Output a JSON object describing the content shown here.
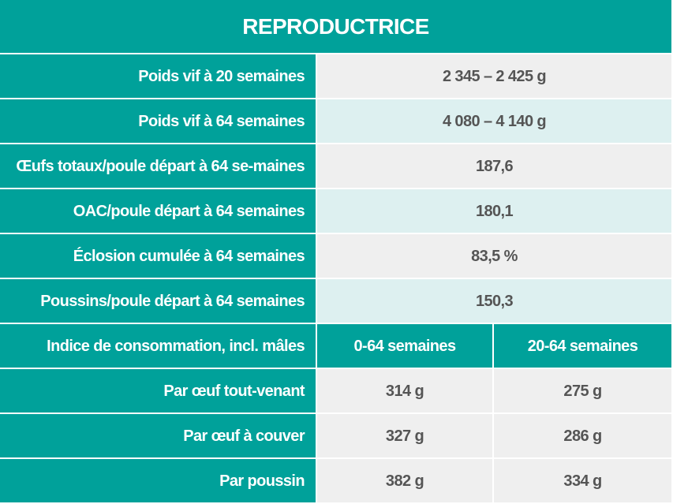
{
  "table": {
    "title": "REPRODUCTRICE",
    "rows": [
      [
        "Poids vif à 20 semaines",
        "2 345 – 2 425 g"
      ],
      [
        "Poids vif à 64 semaines",
        "4 080 – 4 140 g"
      ],
      [
        "Œufs totaux/poule départ à 64 se-maines",
        "187,6"
      ],
      [
        "OAC/poule départ à 64 semaines",
        "180,1"
      ],
      [
        "Éclosion cumulée à 64 semaines",
        "83,5 %"
      ],
      [
        "Poussins/poule départ à 64 semaines",
        "150,3"
      ]
    ],
    "consumption_header": [
      "Indice de consommation, incl. mâles",
      "0-64 semaines",
      "20-64 semaines"
    ],
    "consumption_rows": [
      [
        "Par œuf tout-venant",
        "314 g",
        "275 g"
      ],
      [
        "Par œuf à couver",
        "327 g",
        "286 g"
      ],
      [
        "Par poussin",
        "382 g",
        "334 g"
      ]
    ]
  }
}
